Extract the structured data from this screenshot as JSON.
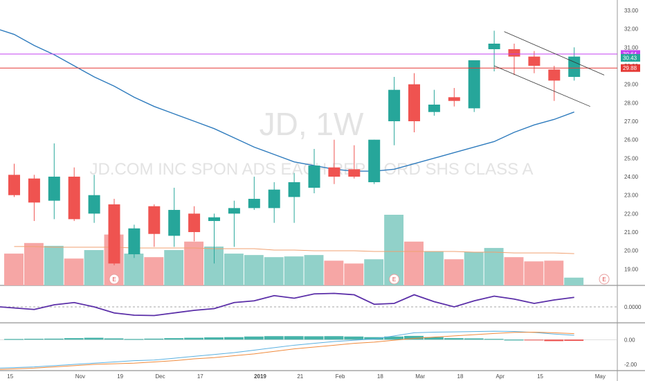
{
  "watermark": {
    "symbol": "JD, 1W",
    "description": "JD.COM INC SPON ADS EACH REP 2 ORD SHS CLASS A"
  },
  "colors": {
    "up": "#26a69a",
    "down": "#ef5350",
    "up_volume": "#91d1c9",
    "down_volume": "#f6a6a5",
    "ma": "#2e7bbd",
    "volume_ma": "#f0a070",
    "resistance_purple": "#c341f2",
    "resistance_red": "#e53935",
    "channel": "#333333",
    "indicator_line": "#5b2fa8",
    "macd_line": "#5ab0e0",
    "signal_line": "#f08a3c"
  },
  "price_tags": [
    {
      "label": "30.64",
      "value": 30.64,
      "color": "#c341f2"
    },
    {
      "label": "30.43",
      "value": 30.43,
      "color": "#26a69a"
    },
    {
      "label": "29.88",
      "value": 29.88,
      "color": "#e53935"
    }
  ],
  "chart_data": {
    "type": "candlestick",
    "price_axis": {
      "ticks": [
        "33.00",
        "32.00",
        "31.00",
        "30.00",
        "29.00",
        "28.00",
        "27.00",
        "26.00",
        "25.00",
        "24.00",
        "23.00",
        "22.00",
        "21.00",
        "20.00",
        "19.00",
        "18.00"
      ],
      "range": [
        18,
        33.4
      ]
    },
    "time_axis": {
      "labels": [
        {
          "text": "15",
          "week": -0.2
        },
        {
          "text": "Nov",
          "week": 3.3
        },
        {
          "text": "19",
          "week": 5.3
        },
        {
          "text": "Dec",
          "week": 7.3
        },
        {
          "text": "17",
          "week": 9.3
        },
        {
          "text": "2019",
          "week": 12.3
        },
        {
          "text": "21",
          "week": 14.3
        },
        {
          "text": "Feb",
          "week": 16.3
        },
        {
          "text": "18",
          "week": 18.3
        },
        {
          "text": "Mar",
          "week": 20.3
        },
        {
          "text": "18",
          "week": 22.3
        },
        {
          "text": "Apr",
          "week": 24.3
        },
        {
          "text": "15",
          "week": 26.3
        },
        {
          "text": "May",
          "week": 29.3
        }
      ]
    },
    "candles": [
      {
        "open": 24.1,
        "high": 24.7,
        "low": 22.9,
        "close": 23.0
      },
      {
        "open": 23.9,
        "high": 24.1,
        "low": 21.6,
        "close": 22.6
      },
      {
        "open": 22.7,
        "high": 25.8,
        "low": 21.7,
        "close": 24.0
      },
      {
        "open": 24.0,
        "high": 24.5,
        "low": 21.6,
        "close": 21.7
      },
      {
        "open": 22.0,
        "high": 24.1,
        "low": 21.5,
        "close": 23.0
      },
      {
        "open": 22.5,
        "high": 22.8,
        "low": 19.2,
        "close": 19.3
      },
      {
        "open": 19.8,
        "high": 21.4,
        "low": 19.6,
        "close": 21.2
      },
      {
        "open": 22.4,
        "high": 22.5,
        "low": 20.2,
        "close": 20.9
      },
      {
        "open": 20.8,
        "high": 23.4,
        "low": 20.2,
        "close": 22.2
      },
      {
        "open": 22.0,
        "high": 22.4,
        "low": 20.5,
        "close": 21.0
      },
      {
        "open": 21.6,
        "high": 22.0,
        "low": 19.3,
        "close": 21.8
      },
      {
        "open": 22.0,
        "high": 22.7,
        "low": 20.2,
        "close": 22.3
      },
      {
        "open": 22.3,
        "high": 24.0,
        "low": 22.2,
        "close": 22.8
      },
      {
        "open": 22.3,
        "high": 23.7,
        "low": 21.5,
        "close": 23.3
      },
      {
        "open": 22.9,
        "high": 24.2,
        "low": 21.5,
        "close": 23.7
      },
      {
        "open": 23.4,
        "high": 25.5,
        "low": 23.1,
        "close": 24.6
      },
      {
        "open": 24.5,
        "high": 26.0,
        "low": 23.6,
        "close": 24.0
      },
      {
        "open": 24.4,
        "high": 25.7,
        "low": 23.9,
        "close": 24.0
      },
      {
        "open": 23.7,
        "high": 26.0,
        "low": 23.6,
        "close": 26.0
      },
      {
        "open": 27.0,
        "high": 29.4,
        "low": 25.7,
        "close": 28.7
      },
      {
        "open": 29.0,
        "high": 29.6,
        "low": 26.4,
        "close": 27.0
      },
      {
        "open": 27.5,
        "high": 28.7,
        "low": 27.3,
        "close": 27.9
      },
      {
        "open": 28.3,
        "high": 28.8,
        "low": 27.8,
        "close": 28.1
      },
      {
        "open": 27.7,
        "high": 30.2,
        "low": 27.5,
        "close": 30.3
      },
      {
        "open": 30.9,
        "high": 31.9,
        "low": 29.7,
        "close": 31.2
      },
      {
        "open": 30.9,
        "high": 31.2,
        "low": 29.5,
        "close": 30.5
      },
      {
        "open": 30.5,
        "high": 30.8,
        "low": 29.6,
        "close": 30.0
      },
      {
        "open": 29.8,
        "high": 30.0,
        "low": 28.1,
        "close": 29.2
      },
      {
        "open": 29.4,
        "high": 31.0,
        "low": 29.2,
        "close": 30.5
      }
    ],
    "moving_average": [
      31.7,
      31.1,
      30.6,
      30.0,
      29.4,
      28.9,
      28.3,
      27.8,
      27.4,
      27.0,
      26.6,
      26.1,
      25.6,
      25.2,
      24.8,
      24.6,
      24.4,
      24.3,
      24.3,
      24.4,
      24.7,
      25.0,
      25.3,
      25.6,
      25.9,
      26.4,
      26.8,
      27.1,
      27.5
    ],
    "volume": [
      0.45,
      0.6,
      0.56,
      0.38,
      0.5,
      0.72,
      0.45,
      0.4,
      0.5,
      0.62,
      0.55,
      0.45,
      0.43,
      0.4,
      0.41,
      0.43,
      0.35,
      0.31,
      0.37,
      1.0,
      0.62,
      0.48,
      0.37,
      0.47,
      0.53,
      0.4,
      0.34,
      0.35,
      0.11
    ],
    "volume_ma": [
      0.55,
      0.55,
      0.54,
      0.54,
      0.54,
      0.54,
      0.53,
      0.53,
      0.53,
      0.53,
      0.52,
      0.52,
      0.52,
      0.5,
      0.5,
      0.49,
      0.49,
      0.49,
      0.48,
      0.48,
      0.48,
      0.48,
      0.48,
      0.47,
      0.47,
      0.46,
      0.46,
      0.46,
      0.45
    ],
    "earnings_markers": [
      {
        "week": 5,
        "label": "E"
      },
      {
        "week": 19,
        "label": "E"
      },
      {
        "week": 29.5,
        "label": "E"
      }
    ],
    "horizontal_lines": [
      {
        "price": 30.64,
        "color": "#c341f2"
      },
      {
        "price": 29.88,
        "color": "#e53935"
      }
    ],
    "trend_channel": [
      {
        "from": {
          "week": 24.5,
          "price": 31.85
        },
        "to": {
          "week": 29.5,
          "price": 29.5
        }
      },
      {
        "from": {
          "week": 24,
          "price": 30.0
        },
        "to": {
          "week": 28.8,
          "price": 27.8
        }
      }
    ],
    "oscillator": {
      "ticks": [
        "0.0000"
      ],
      "range": [
        -1,
        1
      ],
      "values": [
        0.0,
        -0.15,
        0.12,
        0.25,
        0.0,
        -0.35,
        -0.48,
        -0.5,
        -0.35,
        -0.2,
        -0.1,
        0.25,
        0.35,
        0.65,
        0.5,
        0.75,
        0.78,
        0.7,
        0.15,
        0.2,
        0.7,
        0.3,
        0.0,
        0.35,
        0.62,
        0.45,
        0.2,
        0.4,
        0.55
      ]
    },
    "macd": {
      "ticks": [
        "0.00",
        "-2.00"
      ],
      "range": [
        -2.5,
        1.3
      ],
      "macd_line": [
        -2.3,
        -2.2,
        -2.1,
        -2.0,
        -1.9,
        -1.8,
        -1.7,
        -1.65,
        -1.5,
        -1.35,
        -1.2,
        -1.05,
        -0.85,
        -0.65,
        -0.45,
        -0.3,
        -0.15,
        -0.05,
        0.05,
        0.3,
        0.55,
        0.6,
        0.62,
        0.65,
        0.68,
        0.66,
        0.58,
        0.45,
        0.35
      ],
      "signal_line": [
        -2.4,
        -2.3,
        -2.2,
        -2.1,
        -2.0,
        -1.95,
        -1.9,
        -1.8,
        -1.7,
        -1.55,
        -1.45,
        -1.3,
        -1.15,
        -0.95,
        -0.75,
        -0.6,
        -0.45,
        -0.3,
        -0.2,
        -0.05,
        0.1,
        0.2,
        0.3,
        0.4,
        0.5,
        0.58,
        0.6,
        0.55,
        0.48
      ],
      "histogram": [
        0.05,
        0.07,
        0.08,
        0.12,
        0.15,
        0.1,
        0.05,
        0.08,
        0.12,
        0.15,
        0.18,
        0.2,
        0.25,
        0.28,
        0.28,
        0.27,
        0.28,
        0.25,
        0.2,
        0.25,
        0.3,
        0.2,
        0.12,
        0.1,
        0.06,
        0.0,
        -0.05,
        -0.12,
        -0.1
      ]
    }
  }
}
